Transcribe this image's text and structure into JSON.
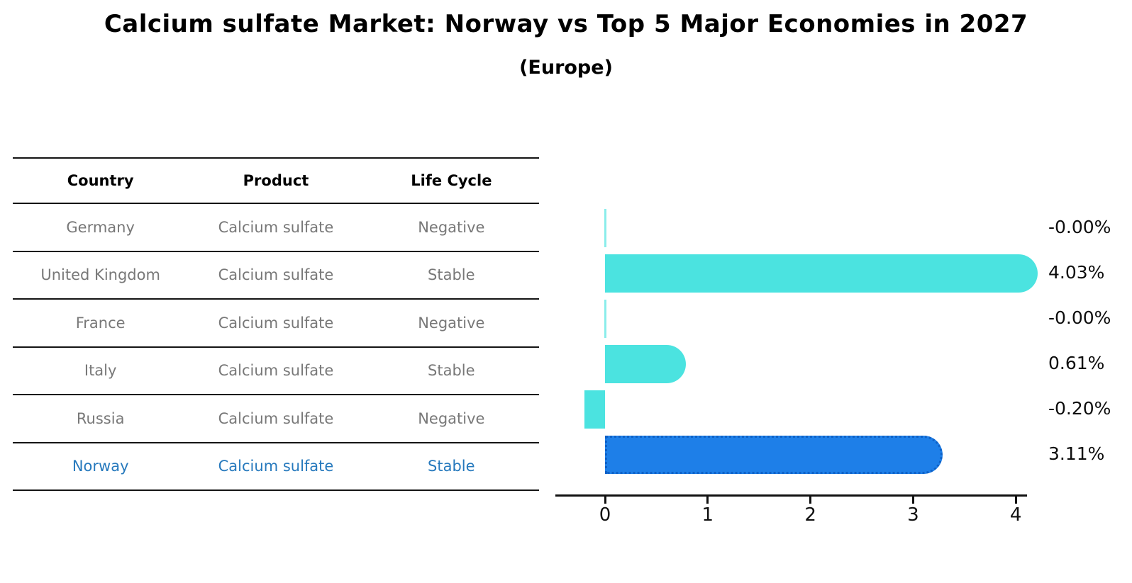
{
  "title": "Calcium sulfate Market: Norway vs Top 5 Major Economies in 2027",
  "subtitle": "(Europe)",
  "table": {
    "headers": [
      "Country",
      "Product",
      "Life Cycle"
    ],
    "rows": [
      {
        "country": "Germany",
        "product": "Calcium sulfate",
        "life_cycle": "Negative",
        "highlight": false
      },
      {
        "country": "United Kingdom",
        "product": "Calcium sulfate",
        "life_cycle": "Stable",
        "highlight": false
      },
      {
        "country": "France",
        "product": "Calcium sulfate",
        "life_cycle": "Negative",
        "highlight": false
      },
      {
        "country": "Italy",
        "product": "Calcium sulfate",
        "life_cycle": "Stable",
        "highlight": false
      },
      {
        "country": "Russia",
        "product": "Calcium sulfate",
        "life_cycle": "Negative",
        "highlight": false
      },
      {
        "country": "Norway",
        "product": "Calcium sulfate",
        "life_cycle": "Stable",
        "highlight": true
      }
    ]
  },
  "chart_data": {
    "type": "bar",
    "orientation": "horizontal",
    "title": "Calcium sulfate Market: Norway vs Top 5 Major Economies in 2027 (Europe)",
    "categories": [
      "Germany",
      "United Kingdom",
      "France",
      "Italy",
      "Russia",
      "Norway"
    ],
    "values": [
      -0.0,
      4.03,
      -0.0,
      0.61,
      -0.2,
      3.11
    ],
    "value_labels": [
      "-0.00%",
      "4.03%",
      "-0.00%",
      "0.61%",
      "-0.20%",
      "3.11%"
    ],
    "x_ticks": [
      "0",
      "1",
      "2",
      "3",
      "4"
    ],
    "xlim": [
      -0.48,
      4.1
    ],
    "grid": false,
    "legend": false,
    "bar_color": "#4be3e0",
    "highlight_color": "#1e7fe8",
    "highlight_index": 5,
    "axis_color": "#111111"
  }
}
